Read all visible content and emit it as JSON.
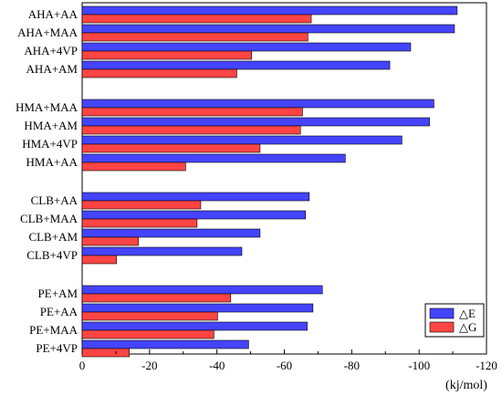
{
  "chart_data": {
    "type": "bar",
    "orientation": "horizontal",
    "title": "",
    "xlabel": "(kj/mol)",
    "ylabel": "",
    "xlim": [
      0,
      -120
    ],
    "x_ticks": [
      0,
      -20,
      -40,
      -60,
      -80,
      -100,
      -120
    ],
    "x_tick_labels": [
      "0",
      "-20",
      "-40",
      "-60",
      "-80",
      "-100",
      "-120"
    ],
    "grid": false,
    "legend_position": "bottom-right",
    "groups": [
      {
        "categories": [
          "AHA+AA",
          "AHA+MAA",
          "AHA+4VP",
          "AHA+AM"
        ],
        "series": [
          {
            "name": "△E",
            "values": [
              -111.3,
              -110.5,
              -97.5,
              -91.3
            ]
          },
          {
            "name": "△G",
            "values": [
              -68.0,
              -67.0,
              -50.3,
              -45.9
            ]
          }
        ]
      },
      {
        "categories": [
          "HMA+MAA",
          "HMA+AM",
          "HMA+4VP",
          "HMA+AA"
        ],
        "series": [
          {
            "name": "△E",
            "values": [
              -104.4,
              -103.1,
              -94.9,
              -78.1
            ]
          },
          {
            "name": "△G",
            "values": [
              -65.4,
              -64.8,
              -52.8,
              -30.7
            ]
          }
        ]
      },
      {
        "categories": [
          "CLB+AA",
          "CLB+MAA",
          "CLB+AM",
          "CLB+4VP"
        ],
        "series": [
          {
            "name": "△E",
            "values": [
              -67.4,
              -66.3,
              -52.8,
              -47.4
            ]
          },
          {
            "name": "△G",
            "values": [
              -35.2,
              -34.1,
              -16.7,
              -10.2
            ]
          }
        ]
      },
      {
        "categories": [
          "PE+AM",
          "PE+AA",
          "PE+MAA",
          "PE+4VP"
        ],
        "series": [
          {
            "name": "△E",
            "values": [
              -71.3,
              -68.5,
              -66.8,
              -49.4
            ]
          },
          {
            "name": "△G",
            "values": [
              -44.1,
              -40.2,
              -39.1,
              -14.0
            ]
          }
        ]
      }
    ],
    "legend": [
      {
        "name": "△E",
        "color": "#4444ff"
      },
      {
        "name": "△G",
        "color": "#ff4444"
      }
    ],
    "colors": {
      "E": "#4444ff",
      "G": "#ff4444",
      "axis": "#000000"
    }
  }
}
